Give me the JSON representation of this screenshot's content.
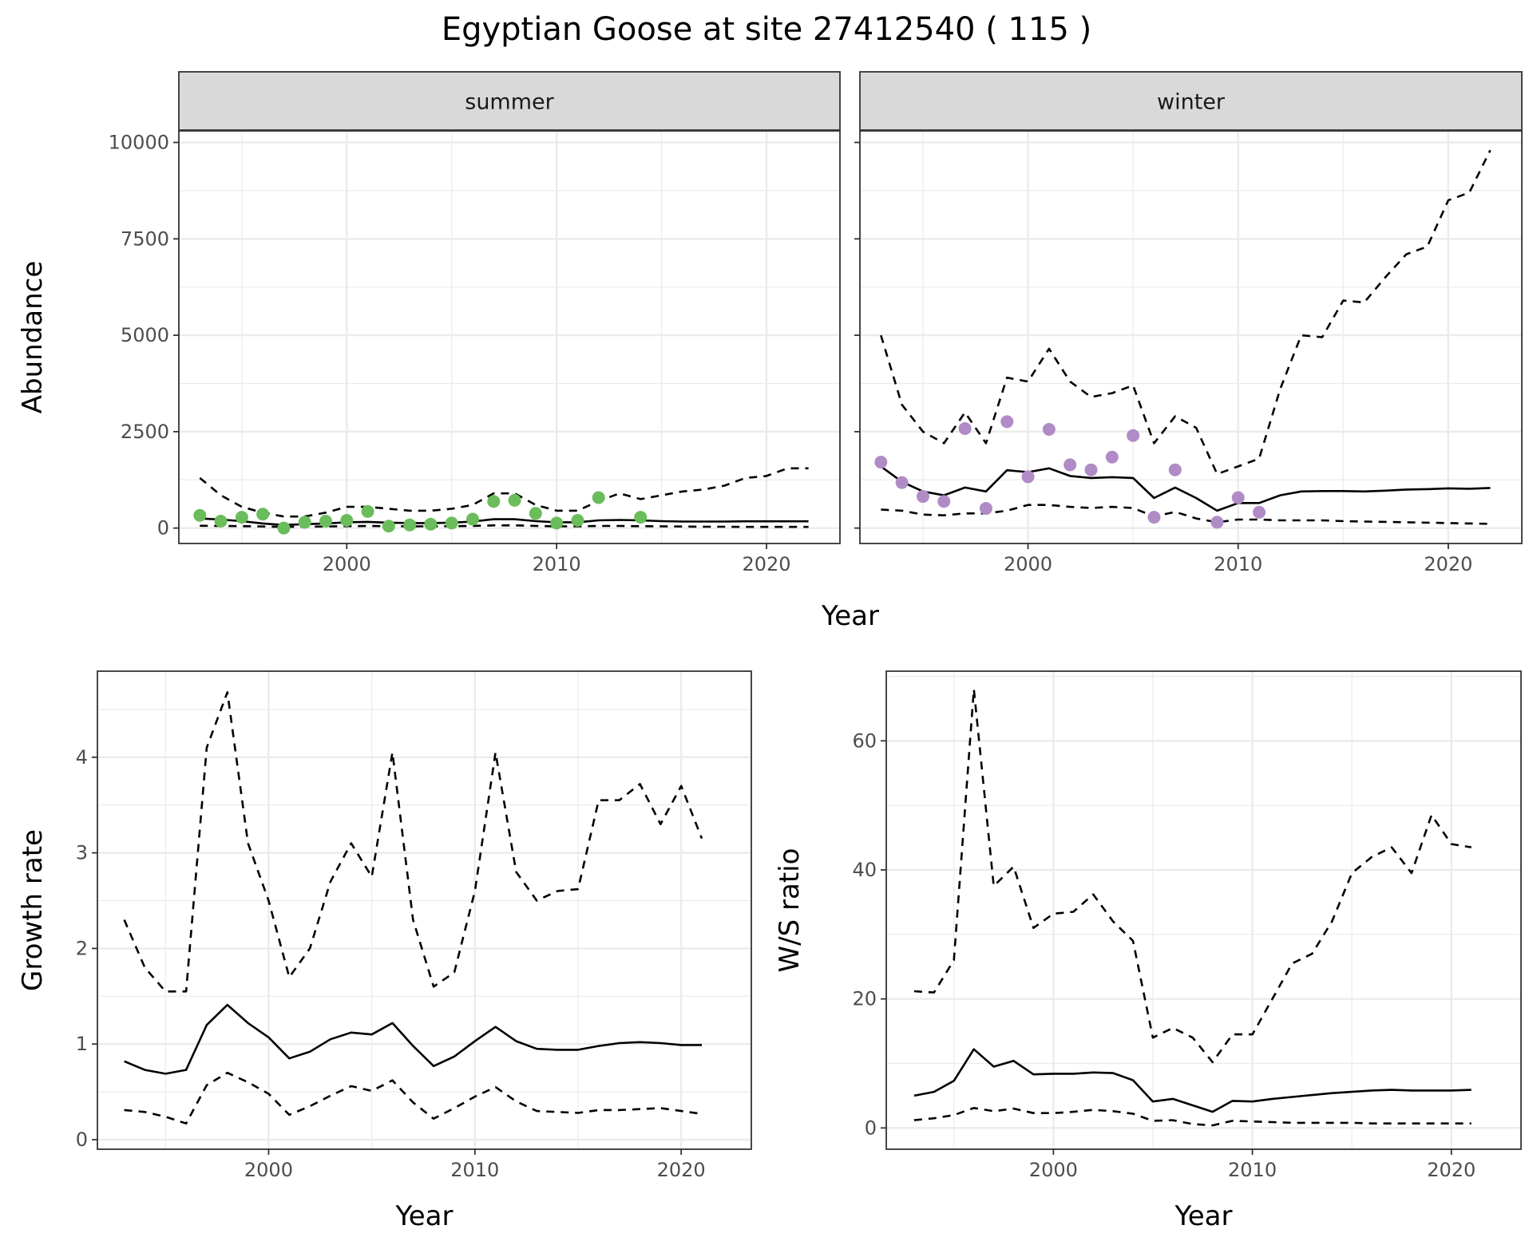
{
  "title": "Egyptian Goose at site 27412540 ( 115 )",
  "colors": {
    "summer_points": "#6ABD5A",
    "winter_points": "#B18BC6",
    "lines": "#000000",
    "strip_bg": "#D9D9D9",
    "grid": "#EBEBEB"
  },
  "chart_data": [
    {
      "type": "line",
      "facet": "summer",
      "xlabel": "Year",
      "ylabel": "Abundance",
      "xticks": [
        2000,
        2010,
        2020
      ],
      "yticks": [
        0,
        2500,
        5000,
        7500,
        10000
      ],
      "xlim": [
        1992,
        2023.5
      ],
      "ylim": [
        -400,
        10300
      ],
      "grid": true,
      "points": {
        "x": [
          1993,
          1994,
          1995,
          1996,
          1997,
          1998,
          1999,
          2000,
          2001,
          2002,
          2003,
          2004,
          2005,
          2006,
          2007,
          2008,
          2009,
          2010,
          2011,
          2012,
          2014
        ],
        "y": [
          330,
          180,
          280,
          360,
          0,
          150,
          180,
          200,
          430,
          50,
          80,
          100,
          130,
          230,
          690,
          720,
          380,
          130,
          200,
          790,
          280
        ]
      },
      "x": [
        1993,
        1994,
        1995,
        1996,
        1997,
        1998,
        1999,
        2000,
        2001,
        2002,
        2003,
        2004,
        2005,
        2006,
        2007,
        2008,
        2009,
        2010,
        2011,
        2012,
        2013,
        2014,
        2015,
        2016,
        2017,
        2018,
        2019,
        2020,
        2021,
        2022
      ],
      "series": [
        {
          "style": "solid",
          "values": [
            250,
            220,
            180,
            120,
            80,
            100,
            120,
            150,
            160,
            140,
            130,
            130,
            140,
            170,
            230,
            230,
            180,
            150,
            150,
            200,
            210,
            200,
            180,
            170,
            170,
            170,
            175,
            175,
            175,
            175
          ]
        },
        {
          "style": "dashed",
          "values": [
            1300,
            850,
            550,
            400,
            300,
            300,
            400,
            550,
            550,
            500,
            450,
            450,
            500,
            600,
            900,
            900,
            600,
            450,
            450,
            700,
            900,
            750,
            850,
            950,
            1000,
            1100,
            1300,
            1350,
            1550,
            1550
          ]
        },
        {
          "style": "dashed",
          "values": [
            60,
            55,
            50,
            40,
            30,
            35,
            40,
            50,
            55,
            50,
            45,
            45,
            50,
            55,
            70,
            70,
            55,
            45,
            45,
            55,
            55,
            50,
            45,
            40,
            35,
            35,
            30,
            30,
            30,
            30
          ]
        }
      ]
    },
    {
      "type": "line",
      "facet": "winter",
      "xlabel": "Year",
      "ylabel": "Abundance",
      "xticks": [
        2000,
        2010,
        2020
      ],
      "yticks": [
        0,
        2500,
        5000,
        7500,
        10000
      ],
      "xlim": [
        1992,
        2023.5
      ],
      "ylim": [
        -400,
        10300
      ],
      "grid": true,
      "points": {
        "x": [
          1993,
          1994,
          1995,
          1996,
          1997,
          1998,
          1999,
          2000,
          2001,
          2002,
          2003,
          2004,
          2005,
          2006,
          2007,
          2009,
          2010,
          2011
        ],
        "y": [
          1710,
          1180,
          820,
          690,
          2580,
          510,
          2760,
          1330,
          2560,
          1640,
          1510,
          1840,
          2400,
          280,
          1510,
          150,
          790,
          410
        ]
      },
      "x": [
        1993,
        1994,
        1995,
        1996,
        1997,
        1998,
        1999,
        2000,
        2001,
        2002,
        2003,
        2004,
        2005,
        2006,
        2007,
        2008,
        2009,
        2010,
        2011,
        2012,
        2013,
        2014,
        2015,
        2016,
        2017,
        2018,
        2019,
        2020,
        2021,
        2022
      ],
      "series": [
        {
          "style": "solid",
          "values": [
            1600,
            1200,
            950,
            850,
            1050,
            950,
            1500,
            1450,
            1550,
            1350,
            1300,
            1320,
            1300,
            780,
            1050,
            780,
            450,
            650,
            650,
            850,
            950,
            960,
            960,
            950,
            970,
            1000,
            1010,
            1030,
            1020,
            1040
          ]
        },
        {
          "style": "dashed",
          "values": [
            5000,
            3200,
            2500,
            2200,
            3000,
            2200,
            3900,
            3800,
            4650,
            3800,
            3400,
            3500,
            3700,
            2200,
            2900,
            2600,
            1400,
            1600,
            1800,
            3600,
            5000,
            4950,
            5900,
            5850,
            6500,
            7100,
            7300,
            8500,
            8700,
            9800
          ]
        },
        {
          "style": "dashed",
          "values": [
            480,
            450,
            350,
            330,
            380,
            380,
            450,
            600,
            600,
            550,
            520,
            550,
            520,
            300,
            420,
            250,
            150,
            220,
            220,
            200,
            200,
            200,
            180,
            170,
            160,
            150,
            140,
            130,
            120,
            110
          ]
        }
      ]
    },
    {
      "type": "line",
      "xlabel": "Year",
      "ylabel": "Growth rate",
      "xticks": [
        2000,
        2010,
        2020
      ],
      "yticks": [
        0,
        1,
        2,
        3,
        4
      ],
      "xlim": [
        1991.7,
        2023.4
      ],
      "ylim": [
        -0.1,
        4.9
      ],
      "grid": true,
      "x": [
        1993,
        1994,
        1995,
        1996,
        1997,
        1998,
        1999,
        2000,
        2001,
        2002,
        2003,
        2004,
        2005,
        2006,
        2007,
        2008,
        2009,
        2010,
        2011,
        2012,
        2013,
        2014,
        2015,
        2016,
        2017,
        2018,
        2019,
        2020,
        2021
      ],
      "series": [
        {
          "style": "solid",
          "values": [
            0.82,
            0.73,
            0.69,
            0.73,
            1.2,
            1.41,
            1.22,
            1.07,
            0.85,
            0.92,
            1.05,
            1.12,
            1.1,
            1.22,
            0.98,
            0.77,
            0.87,
            1.03,
            1.18,
            1.03,
            0.95,
            0.94,
            0.94,
            0.98,
            1.01,
            1.02,
            1.01,
            0.99,
            0.99
          ]
        },
        {
          "style": "dashed",
          "values": [
            2.3,
            1.8,
            1.55,
            1.55,
            4.1,
            4.68,
            3.1,
            2.5,
            1.7,
            2.0,
            2.7,
            3.1,
            2.75,
            4.05,
            2.3,
            1.6,
            1.75,
            2.6,
            4.05,
            2.8,
            2.5,
            2.6,
            2.62,
            3.55,
            3.55,
            3.72,
            3.3,
            3.7,
            3.15
          ]
        },
        {
          "style": "dashed",
          "values": [
            0.31,
            0.29,
            0.24,
            0.17,
            0.57,
            0.7,
            0.6,
            0.48,
            0.26,
            0.35,
            0.46,
            0.56,
            0.51,
            0.62,
            0.39,
            0.22,
            0.33,
            0.45,
            0.55,
            0.4,
            0.3,
            0.29,
            0.28,
            0.31,
            0.31,
            0.32,
            0.33,
            0.3,
            0.27
          ]
        }
      ]
    },
    {
      "type": "line",
      "xlabel": "Year",
      "ylabel": "W/S ratio",
      "xticks": [
        2000,
        2010,
        2020
      ],
      "yticks": [
        0,
        20,
        40,
        60
      ],
      "xlim": [
        1991.6,
        2023.5
      ],
      "ylim": [
        -3.3,
        70.8
      ],
      "grid": true,
      "x": [
        1993,
        1994,
        1995,
        1996,
        1997,
        1998,
        1999,
        2000,
        2001,
        2002,
        2003,
        2004,
        2005,
        2006,
        2007,
        2008,
        2009,
        2010,
        2011,
        2012,
        2013,
        2014,
        2015,
        2016,
        2017,
        2018,
        2019,
        2020,
        2021
      ],
      "series": [
        {
          "style": "solid",
          "values": [
            5,
            5.6,
            7.3,
            12.2,
            9.5,
            10.4,
            8.3,
            8.4,
            8.4,
            8.6,
            8.5,
            7.4,
            4.1,
            4.5,
            3.5,
            2.5,
            4.2,
            4.1,
            4.5,
            4.8,
            5.1,
            5.4,
            5.6,
            5.8,
            5.9,
            5.8,
            5.8,
            5.8,
            5.9
          ]
        },
        {
          "style": "dashed",
          "values": [
            21.2,
            21,
            26,
            68,
            37.5,
            40.5,
            31,
            33.2,
            33.5,
            36.2,
            32,
            29,
            14,
            15.5,
            14,
            10.2,
            14.5,
            14.5,
            20,
            25.5,
            27,
            32,
            39.5,
            42,
            43.5,
            39.5,
            48.5,
            44,
            43.5
          ]
        },
        {
          "style": "dashed",
          "values": [
            1.2,
            1.5,
            2,
            3.1,
            2.6,
            3,
            2.3,
            2.3,
            2.5,
            2.8,
            2.6,
            2.2,
            1.1,
            1.2,
            0.6,
            0.4,
            1.1,
            1,
            0.9,
            0.8,
            0.8,
            0.8,
            0.8,
            0.7,
            0.7,
            0.7,
            0.7,
            0.7,
            0.7
          ]
        }
      ]
    }
  ]
}
